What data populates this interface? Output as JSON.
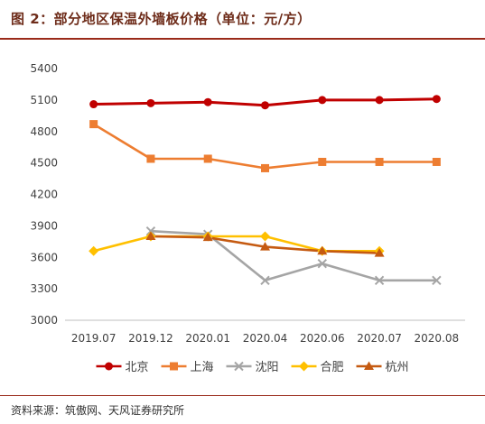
{
  "chart_data": {
    "type": "line",
    "title": "图 2：部分地区保温外墙板价格（单位：元/方）",
    "categories": [
      "2019.07",
      "2019.12",
      "2020.01",
      "2020.04",
      "2020.06",
      "2020.07",
      "2020.08"
    ],
    "ylim": [
      3000,
      5400
    ],
    "yticks": [
      3000,
      3300,
      3600,
      3900,
      4200,
      4500,
      4800,
      5100,
      5400
    ],
    "grid": false,
    "legend_position": "bottom",
    "series": [
      {
        "name": "北京",
        "color": "#c00000",
        "marker": "circle",
        "values": [
          5060,
          5070,
          5080,
          5050,
          5100,
          5100,
          5110
        ]
      },
      {
        "name": "上海",
        "color": "#ed7d31",
        "marker": "square",
        "values": [
          4870,
          4540,
          4540,
          4450,
          4510,
          4510,
          4510
        ]
      },
      {
        "name": "沈阳",
        "color": "#a5a5a5",
        "marker": "x",
        "values": [
          null,
          3850,
          3820,
          3380,
          3540,
          3380,
          3380
        ]
      },
      {
        "name": "合肥",
        "color": "#ffc000",
        "marker": "diamond",
        "values": [
          3660,
          3800,
          3800,
          3800,
          3660,
          3660,
          null
        ]
      },
      {
        "name": "杭州",
        "color": "#c55a11",
        "marker": "triangle",
        "values": [
          null,
          3800,
          3790,
          3700,
          3660,
          3640,
          null
        ]
      }
    ]
  },
  "source": "资料来源：筑傲网、天风证券研究所"
}
